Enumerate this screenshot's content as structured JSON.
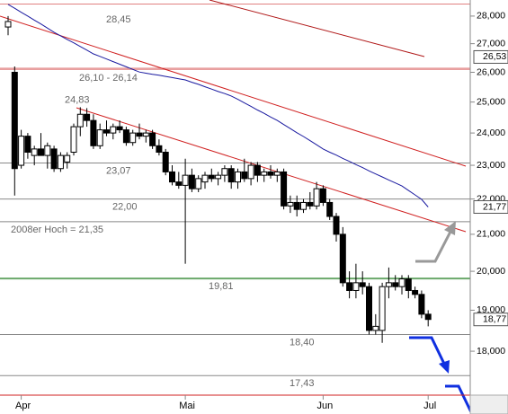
{
  "chart_data": {
    "type": "candlestick",
    "log_scale": true,
    "categories": [
      null,
      null,
      "Apr",
      null,
      null,
      null,
      null,
      null,
      null,
      null,
      null,
      null,
      null,
      null,
      null,
      null,
      null,
      null,
      null,
      null,
      null,
      null,
      null,
      null,
      null,
      null,
      null,
      "Mai",
      null,
      null,
      null,
      null,
      null,
      null,
      null,
      null,
      null,
      null,
      null,
      null,
      null,
      null,
      null,
      null,
      null,
      null,
      null,
      null,
      "Jun",
      null,
      null,
      null,
      null,
      null,
      null,
      null,
      null,
      null,
      null,
      null,
      null,
      null,
      null,
      null,
      "Jul"
    ],
    "open": [
      27600,
      26000,
      23000,
      23900,
      23300,
      23500,
      23300,
      23500,
      22900,
      23100,
      23400,
      24200,
      24600,
      24400,
      23600,
      24100,
      24000,
      24200,
      24100,
      23700,
      24000,
      23900,
      24000,
      23600,
      23400,
      22800,
      22500,
      22400,
      22700,
      22300,
      22500,
      22700,
      22600,
      22700,
      22900,
      22500,
      22800,
      22600,
      23000,
      22700,
      22800,
      22700,
      22800,
      21800,
      21900,
      21700,
      21900,
      21800,
      22300,
      21900,
      21500,
      21000,
      19700,
      19500,
      19700,
      19600,
      18500,
      18500,
      19600,
      19700,
      19600,
      19800,
      19500,
      19400,
      18900
    ],
    "high": [
      28000,
      26200,
      24100,
      24000,
      23600,
      24000,
      23700,
      23600,
      23400,
      23400,
      24300,
      24830,
      24800,
      24600,
      24300,
      24400,
      24300,
      24400,
      24200,
      24100,
      24300,
      24100,
      24100,
      23800,
      23500,
      23000,
      22800,
      23200,
      22900,
      22700,
      22800,
      22900,
      22800,
      23000,
      23000,
      22900,
      23200,
      23100,
      23100,
      22900,
      23000,
      22900,
      22900,
      22100,
      22100,
      22000,
      22200,
      22500,
      22400,
      22000,
      21600,
      21200,
      20000,
      20200,
      20000,
      19700,
      18900,
      19700,
      20100,
      19900,
      19900,
      19900,
      19600,
      19500,
      19000
    ],
    "low": [
      27300,
      22100,
      22900,
      23200,
      23000,
      23300,
      22900,
      22800,
      22800,
      22900,
      23300,
      23900,
      24200,
      23500,
      23500,
      23900,
      23800,
      24000,
      23600,
      23600,
      23800,
      23700,
      23500,
      23300,
      22700,
      22400,
      22300,
      20200,
      22200,
      22200,
      22300,
      22500,
      22400,
      22500,
      22300,
      22300,
      22500,
      22400,
      22500,
      22500,
      22600,
      22500,
      21700,
      21600,
      21500,
      21600,
      21700,
      21700,
      21800,
      21400,
      20800,
      19600,
      19300,
      19300,
      19400,
      18400,
      18400,
      18200,
      19300,
      19500,
      19400,
      19300,
      19300,
      18800,
      18600
    ],
    "close": [
      27800,
      22900,
      23900,
      23400,
      23500,
      23300,
      23600,
      22900,
      23300,
      23300,
      24200,
      24600,
      24400,
      23600,
      24100,
      24000,
      24200,
      24100,
      23700,
      24000,
      23900,
      24000,
      23600,
      23400,
      22800,
      22500,
      22400,
      22700,
      22300,
      22600,
      22700,
      22600,
      22700,
      22900,
      22500,
      22800,
      22600,
      23000,
      22700,
      22800,
      22700,
      22800,
      21800,
      21900,
      21700,
      21900,
      21800,
      22300,
      21900,
      21500,
      21000,
      19700,
      19500,
      19700,
      19600,
      18500,
      18600,
      19600,
      19700,
      19600,
      19800,
      19500,
      19400,
      18900,
      18770
    ],
    "moving_average": [
      28435,
      28290,
      28140,
      28000,
      27850,
      27710,
      27560,
      27410,
      27280,
      27150,
      27030,
      26900,
      26770,
      26640,
      26550,
      26460,
      26370,
      26280,
      26190,
      26100,
      26010,
      25970,
      25930,
      25900,
      25860,
      25820,
      25780,
      25740,
      25660,
      25590,
      25510,
      25430,
      25350,
      25280,
      25200,
      25090,
      24970,
      24860,
      24740,
      24630,
      24510,
      24400,
      24270,
      24140,
      24010,
      23890,
      23760,
      23630,
      23500,
      23400,
      23310,
      23210,
      23120,
      23020,
      22930,
      22830,
      22740,
      22650,
      22560,
      22470,
      22380,
      22250,
      22120,
      21990,
      21770
    ],
    "ma_color": "#1a1aa0",
    "levels": [
      {
        "values": [
          28450
        ],
        "label": "28,45",
        "color": "#e08080"
      },
      {
        "values": [
          26100,
          26140
        ],
        "label": "26,10 - 26,14",
        "color": "#e08080"
      },
      {
        "values": [
          24830
        ],
        "label": "24,83",
        "color": "none"
      },
      {
        "values": [
          23070
        ],
        "label": "23,07",
        "color": "#888"
      },
      {
        "values": [
          22000
        ],
        "label": "22,00",
        "color": "#888"
      },
      {
        "values": [
          21350
        ],
        "label": "2008er Hoch  = 21,35",
        "color": "#888"
      },
      {
        "values": [
          19810
        ],
        "label": "19,81",
        "color": "#6aa86a"
      },
      {
        "values": [
          18400
        ],
        "label": "18,40",
        "color": "#888"
      },
      {
        "values": [
          17430
        ],
        "label": "17,43",
        "color": "#888"
      }
    ],
    "price_tags": [
      {
        "value": 26530,
        "label": "26,53"
      },
      {
        "value": 21770,
        "label": "21,77"
      },
      {
        "value": 18770,
        "label": "18,77"
      }
    ],
    "ylim": [
      16570,
      28600
    ],
    "yticks": [
      {
        "value": 18000,
        "label": "18,000"
      },
      {
        "value": 19000,
        "label": "19,000"
      },
      {
        "value": 20000,
        "label": "20,000"
      },
      {
        "value": 21000,
        "label": "21,000"
      },
      {
        "value": 22000,
        "label": "22,000"
      },
      {
        "value": 23000,
        "label": "23,000"
      },
      {
        "value": 24000,
        "label": "24,000"
      },
      {
        "value": 25000,
        "label": "25,000"
      },
      {
        "value": 26000,
        "label": "26,000"
      },
      {
        "value": 27000,
        "label": "27,000"
      },
      {
        "value": 28000,
        "label": "28,000"
      }
    ]
  }
}
